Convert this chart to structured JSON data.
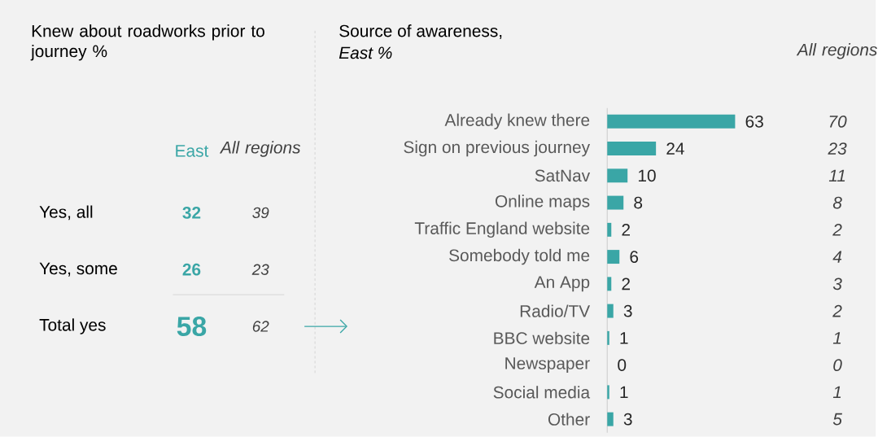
{
  "chart_data": [
    {
      "type": "other",
      "title": "Knew about roadworks prior to journey %",
      "categories": [
        "Yes, all",
        "Yes, some",
        "Total yes"
      ],
      "series": [
        {
          "name": "East",
          "color": "#3aa6a6",
          "values": [
            32,
            26,
            58
          ]
        },
        {
          "name": "All regions",
          "color": "#404040",
          "values": [
            39,
            23,
            62
          ]
        }
      ],
      "data_labels": true
    },
    {
      "type": "bar",
      "orientation": "horizontal",
      "title": "Source of awareness,",
      "subtitle": "East %",
      "categories": [
        "Already knew there",
        "Sign on previous journey",
        "SatNav",
        "Online maps",
        "Traffic England website",
        "Somebody told me",
        "An App",
        "Radio/TV",
        "BBC website",
        "Newspaper",
        "Social media",
        "Other"
      ],
      "values": [
        63,
        24,
        10,
        8,
        2,
        6,
        2,
        3,
        1,
        0,
        1,
        3
      ],
      "color": "#3aa6a6",
      "data_labels": true,
      "annotations": [
        "All regions",
        "70",
        "23",
        "11",
        "8",
        "2",
        "4",
        "3",
        "2",
        "1",
        "0",
        "1",
        "5"
      ]
    }
  ]
}
